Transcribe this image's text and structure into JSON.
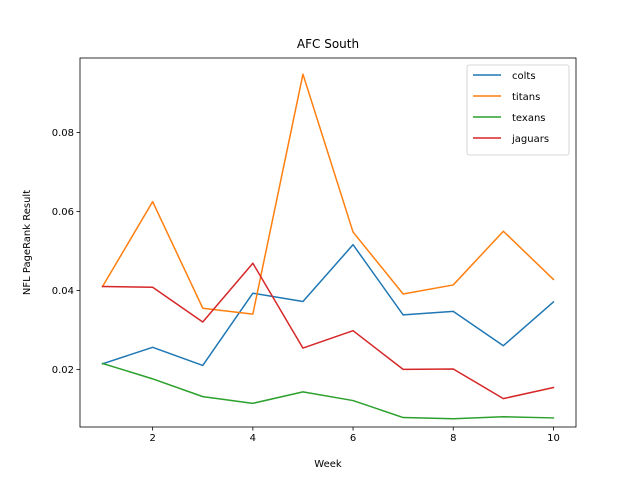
{
  "chart_data": {
    "type": "line",
    "title": "AFC South",
    "xlabel": "Week",
    "ylabel": "NFL PageRank Result",
    "x": [
      1,
      2,
      3,
      4,
      5,
      6,
      7,
      8,
      9,
      10
    ],
    "xlim": [
      0.55,
      10.45
    ],
    "ylim": [
      0.0054,
      0.0989
    ],
    "xticks": [
      2,
      4,
      6,
      8,
      10
    ],
    "yticks": [
      0.02,
      0.04,
      0.06,
      0.08
    ],
    "ytick_labels": [
      "0.02",
      "0.04",
      "0.06",
      "0.08"
    ],
    "grid": false,
    "legend_position": "top-right",
    "series": [
      {
        "name": "colts",
        "color": "#1f77b4",
        "values": [
          0.0214,
          0.0256,
          0.021,
          0.0393,
          0.0372,
          0.0516,
          0.0338,
          0.0347,
          0.026,
          0.0371
        ]
      },
      {
        "name": "titans",
        "color": "#ff7f0e",
        "values": [
          0.041,
          0.0625,
          0.0355,
          0.034,
          0.0948,
          0.0548,
          0.0391,
          0.0414,
          0.055,
          0.0428
        ]
      },
      {
        "name": "texans",
        "color": "#2ca02c",
        "values": [
          0.0215,
          0.0176,
          0.0131,
          0.0114,
          0.0143,
          0.0121,
          0.0078,
          0.0075,
          0.008,
          0.0077
        ]
      },
      {
        "name": "jaguars",
        "color": "#d62728",
        "values": [
          0.041,
          0.0408,
          0.032,
          0.0469,
          0.0254,
          0.0298,
          0.02,
          0.0201,
          0.0126,
          0.0154
        ]
      }
    ]
  }
}
